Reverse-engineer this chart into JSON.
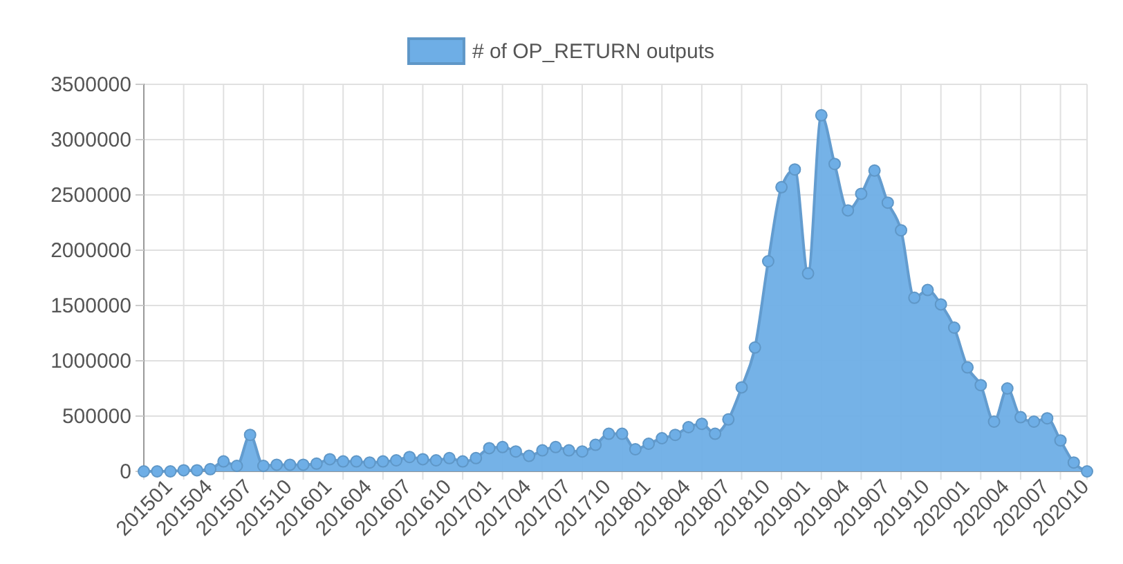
{
  "chart_data": {
    "type": "area",
    "categories": [
      "201501",
      null,
      null,
      "201504",
      null,
      null,
      "201507",
      null,
      null,
      "201510",
      null,
      null,
      "201601",
      null,
      null,
      "201604",
      null,
      null,
      "201607",
      null,
      null,
      "201610",
      null,
      null,
      "201701",
      null,
      null,
      "201704",
      null,
      null,
      "201707",
      null,
      null,
      "201710",
      null,
      null,
      "201801",
      null,
      null,
      "201804",
      null,
      null,
      "201807",
      null,
      null,
      "201810",
      null,
      null,
      "201901",
      null,
      null,
      "201904",
      null,
      null,
      "201907",
      null,
      null,
      "201910",
      null,
      null,
      "202001",
      null,
      null,
      "202004",
      null,
      null,
      "202007",
      null,
      null,
      "202010",
      null,
      null
    ],
    "series": [
      {
        "name": "# of OP_RETURN outputs",
        "color": "#6eaee6",
        "values": [
          0,
          0,
          0,
          10000,
          10000,
          20000,
          90000,
          50000,
          330000,
          50000,
          60000,
          60000,
          60000,
          70000,
          110000,
          90000,
          90000,
          80000,
          90000,
          100000,
          130000,
          110000,
          100000,
          120000,
          90000,
          120000,
          210000,
          220000,
          180000,
          140000,
          190000,
          220000,
          190000,
          180000,
          240000,
          340000,
          340000,
          200000,
          250000,
          300000,
          330000,
          400000,
          430000,
          340000,
          470000,
          760000,
          1120000,
          1900000,
          2570000,
          2730000,
          1790000,
          3220000,
          2780000,
          2360000,
          2510000,
          2720000,
          2430000,
          2180000,
          1570000,
          1640000,
          1510000,
          1300000,
          940000,
          780000,
          450000,
          750000,
          490000,
          450000,
          480000,
          280000,
          80000,
          0
        ]
      }
    ],
    "ylim": [
      0,
      3500000
    ],
    "yticks": [
      0,
      500000,
      1000000,
      1500000,
      2000000,
      2500000,
      3000000,
      3500000
    ],
    "grid": true,
    "legend": "top",
    "marker": "circle"
  }
}
